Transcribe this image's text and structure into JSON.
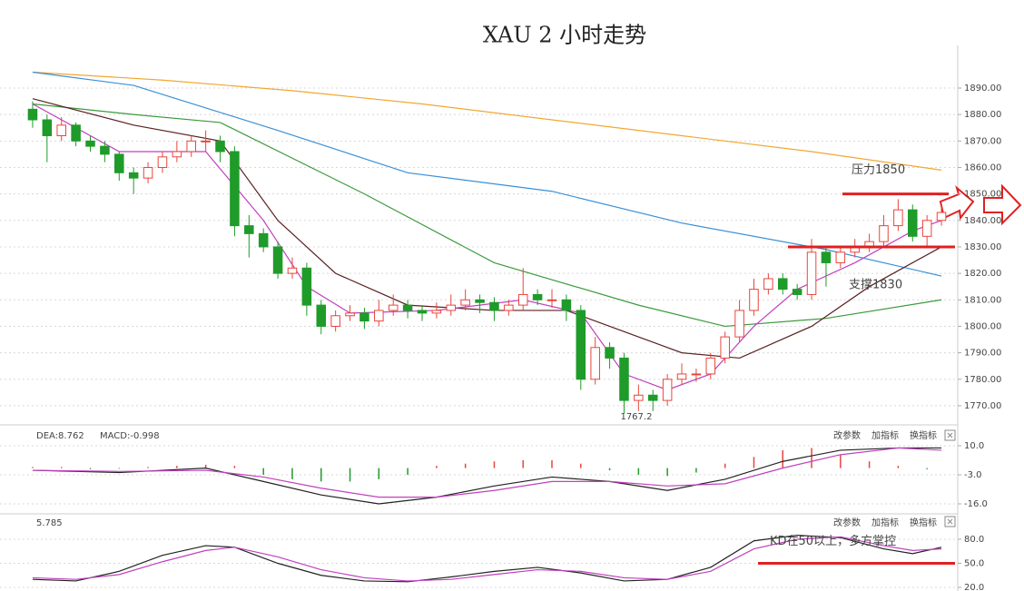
{
  "chart_data": [
    {
      "type": "candlestick",
      "title": "XAU 2 小时走势",
      "open": [
        1882,
        1878,
        1872,
        1876,
        1870,
        1868,
        1865,
        1858,
        1856,
        1860,
        1864,
        1866,
        1870,
        1870,
        1866,
        1838,
        1835,
        1830,
        1820,
        1822,
        1808,
        1800,
        1804,
        1805,
        1802,
        1806,
        1808,
        1806,
        1805,
        1806,
        1808,
        1810,
        1809,
        1806,
        1808,
        1812,
        1810,
        1810,
        1806,
        1780,
        1792,
        1788,
        1772,
        1774,
        1772,
        1780,
        1782,
        1782,
        1788,
        1796,
        1806,
        1814,
        1818,
        1814,
        1812,
        1828,
        1824,
        1828,
        1830,
        1832,
        1838,
        1844,
        1834,
        1840
      ],
      "high": [
        1885,
        1880,
        1879,
        1877,
        1872,
        1870,
        1866,
        1860,
        1862,
        1866,
        1870,
        1872,
        1874,
        1872,
        1868,
        1842,
        1837,
        1832,
        1826,
        1824,
        1810,
        1806,
        1808,
        1807,
        1810,
        1812,
        1810,
        1808,
        1809,
        1812,
        1814,
        1812,
        1811,
        1810,
        1822,
        1814,
        1814,
        1812,
        1808,
        1796,
        1794,
        1790,
        1778,
        1776,
        1782,
        1786,
        1784,
        1790,
        1798,
        1810,
        1818,
        1820,
        1820,
        1816,
        1833,
        1830,
        1830,
        1833,
        1835,
        1842,
        1848,
        1846,
        1842,
        1846
      ],
      "low": [
        1875,
        1862,
        1870,
        1868,
        1866,
        1862,
        1855,
        1850,
        1854,
        1858,
        1862,
        1864,
        1866,
        1862,
        1834,
        1826,
        1828,
        1818,
        1818,
        1804,
        1797,
        1798,
        1802,
        1799,
        1800,
        1804,
        1803,
        1802,
        1803,
        1804,
        1806,
        1805,
        1802,
        1804,
        1806,
        1808,
        1807,
        1802,
        1776,
        1778,
        1784,
        1767,
        1768,
        1768,
        1770,
        1778,
        1779,
        1780,
        1786,
        1794,
        1804,
        1812,
        1812,
        1810,
        1810,
        1815,
        1822,
        1826,
        1828,
        1830,
        1836,
        1832,
        1830,
        1838
      ],
      "close": [
        1878,
        1872,
        1876,
        1870,
        1868,
        1865,
        1858,
        1856,
        1860,
        1864,
        1866,
        1870,
        1870,
        1866,
        1838,
        1835,
        1830,
        1820,
        1822,
        1808,
        1800,
        1804,
        1805,
        1802,
        1806,
        1808,
        1806,
        1805,
        1806,
        1808,
        1810,
        1809,
        1806,
        1808,
        1812,
        1810,
        1810,
        1806,
        1780,
        1792,
        1788,
        1772,
        1774,
        1772,
        1780,
        1782,
        1782,
        1788,
        1796,
        1806,
        1814,
        1818,
        1814,
        1812,
        1828,
        1824,
        1828,
        1830,
        1832,
        1838,
        1844,
        1834,
        1840,
        1843
      ],
      "up_color": "#e8453c",
      "down_color": "#1f9b2a",
      "xlim": [
        -0.5,
        63.5
      ],
      "ylim": [
        1763.8,
        1904.4
      ],
      "yticks": [
        {
          "value": 1770,
          "label": "1770.00"
        },
        {
          "value": 1780,
          "label": "1780.00"
        },
        {
          "value": 1790,
          "label": "1790.00"
        },
        {
          "value": 1800,
          "label": "1800.00"
        },
        {
          "value": 1810,
          "label": "1810.00"
        },
        {
          "value": 1820,
          "label": "1820.00"
        },
        {
          "value": 1830,
          "label": "1830.00"
        },
        {
          "value": 1840,
          "label": "1840.00"
        },
        {
          "value": 1850,
          "label": "1850.00"
        },
        {
          "value": 1860,
          "label": "1860.00"
        },
        {
          "value": 1870,
          "label": "1870.00"
        },
        {
          "value": 1880,
          "label": "1880.00"
        },
        {
          "value": 1890,
          "label": "1890.00"
        }
      ],
      "grid": true,
      "series": [
        {
          "color": "#f0a830",
          "x": [
            0,
            9,
            18,
            27,
            36,
            45,
            54,
            63
          ],
          "values": [
            1896,
            1893,
            1889,
            1884,
            1878,
            1872,
            1866,
            1859
          ]
        },
        {
          "color": "#3a8fd8",
          "x": [
            0,
            7,
            17,
            26,
            36,
            45,
            55,
            63
          ],
          "values": [
            1896,
            1891,
            1874,
            1858,
            1851,
            1839,
            1829,
            1819
          ]
        },
        {
          "color": "#3c9a3c",
          "x": [
            0,
            7,
            13,
            23,
            32,
            42,
            48,
            55,
            63
          ],
          "values": [
            1884,
            1880,
            1877,
            1850,
            1824,
            1808,
            1800,
            1803,
            1810
          ]
        },
        {
          "color": "#5a2020",
          "x": [
            0,
            7,
            13,
            17,
            21,
            26,
            32,
            37,
            40,
            45,
            49,
            54,
            58,
            63
          ],
          "values": [
            1886,
            1876,
            1870,
            1840,
            1820,
            1808,
            1806,
            1806,
            1800,
            1790,
            1788,
            1800,
            1815,
            1830
          ]
        },
        {
          "color": "#c040c0",
          "x": [
            0,
            6,
            12,
            16,
            19,
            22,
            28,
            34,
            38,
            41,
            44,
            47,
            50,
            53,
            57,
            61,
            63
          ],
          "values": [
            1884,
            1866,
            1866,
            1840,
            1815,
            1805,
            1806,
            1810,
            1805,
            1782,
            1776,
            1782,
            1800,
            1814,
            1824,
            1836,
            1840
          ]
        }
      ],
      "annotations": [
        {
          "text": "压力1850",
          "value": 1850,
          "color": "#e02020"
        },
        {
          "text": "支撑1830",
          "value": 1830,
          "color": "#e02020"
        }
      ],
      "low_label": 1767.2
    },
    {
      "type": "macd",
      "labels": [
        "DEA:8.762",
        "MACD:-0.998"
      ],
      "buttons": [
        "改参数",
        "加指标",
        "换指标"
      ],
      "xlim": [
        -0.5,
        63.5
      ],
      "ylim": [
        -20.06,
        18.53
      ],
      "yticks": [
        {
          "value": 10,
          "label": "10.0"
        },
        {
          "value": -3,
          "label": "-3.0"
        },
        {
          "value": -16,
          "label": "-16.0"
        }
      ],
      "up_color": "#e8453c",
      "down_color": "#1f9b2a",
      "histogram": {
        "x": [
          0,
          2,
          4,
          6,
          8,
          10,
          12,
          14,
          16,
          18,
          20,
          22,
          24,
          26,
          28,
          30,
          32,
          34,
          36,
          38,
          40,
          42,
          44,
          46,
          48,
          50,
          52,
          54,
          56,
          58,
          60,
          62
        ],
        "values": [
          0.5,
          0.5,
          -0.5,
          -0.3,
          0.5,
          1,
          1.5,
          1,
          -3,
          -5,
          -6,
          -6,
          -5,
          -3,
          1,
          2,
          3,
          3.5,
          3.5,
          2,
          -1,
          -3,
          -3.5,
          -2,
          2,
          5,
          8,
          9,
          6,
          3,
          1,
          -0.5
        ]
      },
      "series": [
        {
          "color": "#222222",
          "x": [
            0,
            6,
            12,
            16,
            20,
            24,
            28,
            32,
            36,
            40,
            44,
            48,
            52,
            56,
            60,
            63
          ],
          "values": [
            -1,
            -2,
            0,
            -6,
            -12,
            -16,
            -13,
            -8,
            -4,
            -6,
            -10,
            -5,
            3,
            8,
            9,
            9
          ]
        },
        {
          "color": "#c040c0",
          "x": [
            0,
            6,
            12,
            16,
            20,
            24,
            28,
            32,
            36,
            40,
            44,
            48,
            52,
            56,
            60,
            63
          ],
          "values": [
            -1,
            -1.5,
            -1,
            -4,
            -9,
            -13,
            -13,
            -10,
            -6,
            -6,
            -8,
            -7,
            0,
            6,
            9,
            8
          ]
        }
      ]
    },
    {
      "type": "kd",
      "labels": [
        "5.785"
      ],
      "buttons": [
        "改参数",
        "加指标",
        "换指标"
      ],
      "xlim": [
        -0.5,
        63.5
      ],
      "ylim": [
        15.5,
        109.4
      ],
      "yticks": [
        {
          "value": 20,
          "label": "20.0"
        },
        {
          "value": 50,
          "label": "50.0"
        },
        {
          "value": 80,
          "label": "80.0"
        }
      ],
      "series": [
        {
          "color": "#222222",
          "x": [
            0,
            3,
            6,
            9,
            12,
            14,
            17,
            20,
            23,
            26,
            29,
            32,
            35,
            38,
            41,
            44,
            47,
            50,
            53,
            56,
            59,
            61,
            63
          ],
          "values": [
            30,
            28,
            40,
            60,
            72,
            70,
            50,
            35,
            28,
            27,
            33,
            40,
            45,
            38,
            28,
            30,
            45,
            78,
            85,
            82,
            68,
            62,
            70
          ]
        },
        {
          "color": "#c040c0",
          "x": [
            0,
            3,
            6,
            9,
            12,
            14,
            17,
            20,
            23,
            26,
            29,
            32,
            35,
            38,
            41,
            44,
            47,
            50,
            53,
            56,
            59,
            61,
            63
          ],
          "values": [
            32,
            30,
            36,
            52,
            66,
            70,
            58,
            42,
            32,
            28,
            30,
            36,
            42,
            40,
            32,
            30,
            40,
            68,
            80,
            83,
            72,
            66,
            68
          ]
        }
      ],
      "annotations": [
        {
          "text": "KD在50以上，多方掌控",
          "value": 50,
          "color": "#e02020"
        }
      ]
    }
  ]
}
